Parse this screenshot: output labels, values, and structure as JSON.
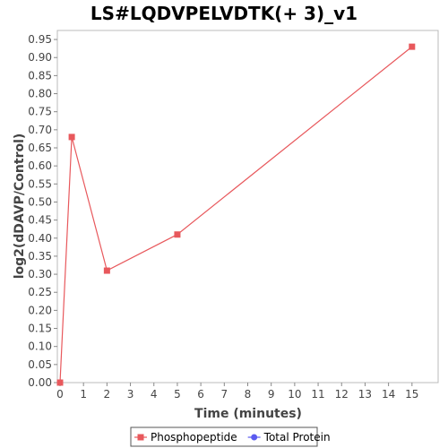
{
  "chart_data": {
    "type": "line",
    "title": "LS#LQDVPELVDTK(+ 3)_v1",
    "xlabel": "Time (minutes)",
    "ylabel": "log2(dDAVP/Control)",
    "xlim": [
      0,
      16
    ],
    "ylim": [
      0,
      0.975
    ],
    "x_ticks": [
      0,
      1,
      2,
      3,
      4,
      5,
      6,
      7,
      8,
      9,
      10,
      11,
      12,
      13,
      14,
      15
    ],
    "y_ticks": [
      0.0,
      0.05,
      0.1,
      0.15,
      0.2,
      0.25,
      0.3,
      0.35,
      0.4,
      0.45,
      0.5,
      0.55,
      0.6,
      0.65,
      0.7,
      0.75,
      0.8,
      0.85,
      0.9,
      0.95
    ],
    "grid": false,
    "legend_position": "bottom-center",
    "series": [
      {
        "name": "Phosphopeptide",
        "color": "#e8585c",
        "marker": "square",
        "x": [
          0,
          0.5,
          2,
          5,
          15
        ],
        "y": [
          0.0,
          0.68,
          0.31,
          0.41,
          0.93
        ]
      },
      {
        "name": "Total Protein",
        "color": "#5b5bf0",
        "marker": "circle",
        "x": [],
        "y": []
      }
    ]
  }
}
